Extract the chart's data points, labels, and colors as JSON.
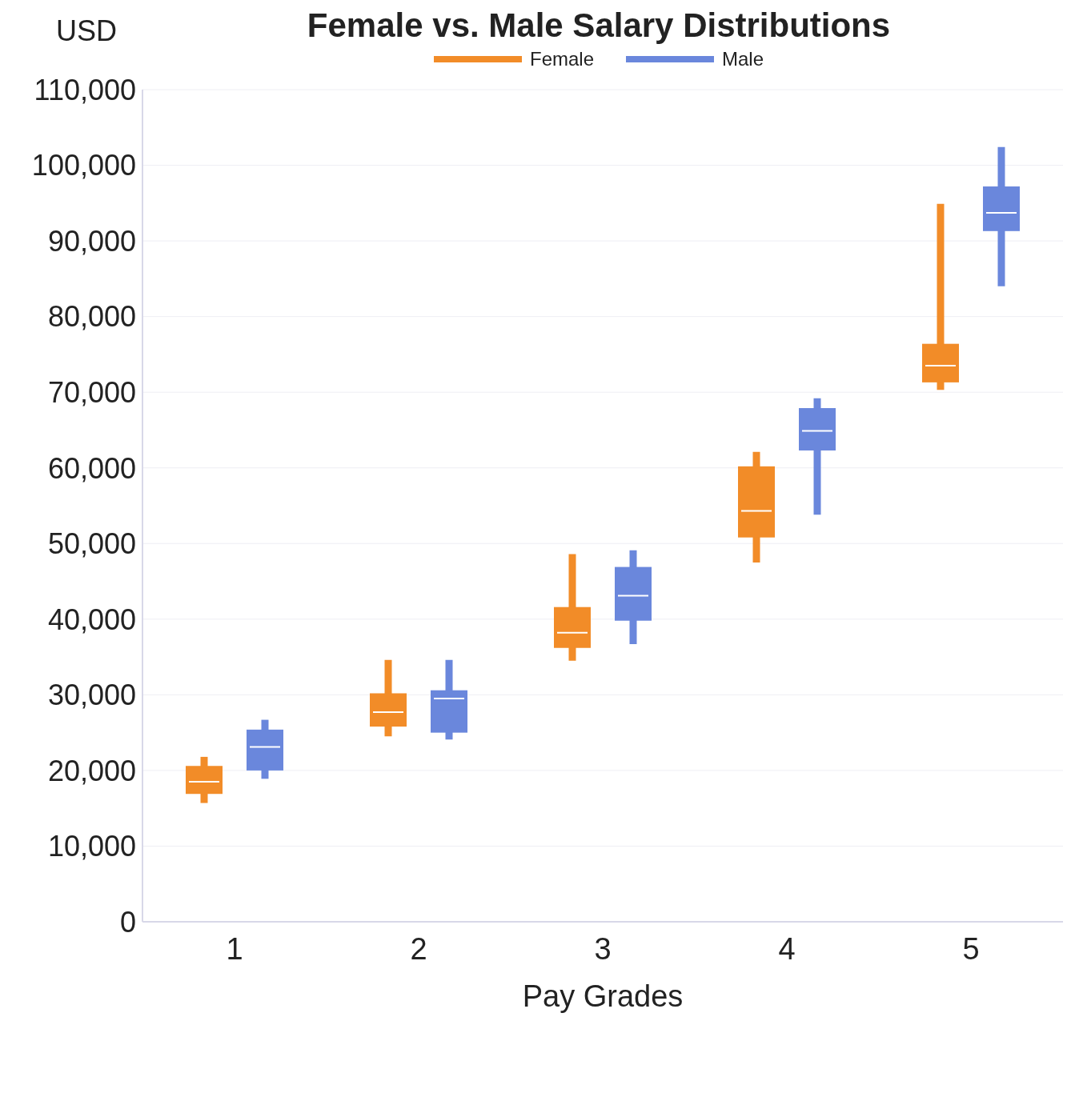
{
  "chart_data": {
    "type": "box",
    "title": "Female vs. Male Salary Distributions",
    "xlabel": "Pay Grades",
    "ylabel": "USD",
    "categories": [
      "1",
      "2",
      "3",
      "4",
      "5"
    ],
    "series": [
      {
        "name": "Female",
        "color": "#f28c28",
        "boxes": [
          {
            "low": 15700,
            "q1": 16900,
            "median": 18500,
            "q3": 20600,
            "high": 21800
          },
          {
            "low": 24500,
            "q1": 25800,
            "median": 27700,
            "q3": 30200,
            "high": 34600
          },
          {
            "low": 34500,
            "q1": 36200,
            "median": 38200,
            "q3": 41600,
            "high": 48600
          },
          {
            "low": 47500,
            "q1": 50800,
            "median": 54300,
            "q3": 60200,
            "high": 62100
          },
          {
            "low": 70300,
            "q1": 71300,
            "median": 73500,
            "q3": 76400,
            "high": 94900
          }
        ]
      },
      {
        "name": "Male",
        "color": "#6a87dc",
        "boxes": [
          {
            "low": 18900,
            "q1": 20000,
            "median": 23100,
            "q3": 25400,
            "high": 26700
          },
          {
            "low": 24100,
            "q1": 25000,
            "median": 29500,
            "q3": 30600,
            "high": 34600
          },
          {
            "low": 36700,
            "q1": 39800,
            "median": 43100,
            "q3": 46900,
            "high": 49100
          },
          {
            "low": 53800,
            "q1": 62300,
            "median": 64900,
            "q3": 67900,
            "high": 69200
          },
          {
            "low": 84000,
            "q1": 91300,
            "median": 93700,
            "q3": 97200,
            "high": 102400
          }
        ]
      }
    ],
    "ylim": [
      0,
      110000
    ],
    "yticks": [
      {
        "value": 0,
        "label": "0"
      },
      {
        "value": 10000,
        "label": "10,000"
      },
      {
        "value": 20000,
        "label": "20,000"
      },
      {
        "value": 30000,
        "label": "30,000"
      },
      {
        "value": 40000,
        "label": "40,000"
      },
      {
        "value": 50000,
        "label": "50,000"
      },
      {
        "value": 60000,
        "label": "60,000"
      },
      {
        "value": 70000,
        "label": "70,000"
      },
      {
        "value": 80000,
        "label": "80,000"
      },
      {
        "value": 90000,
        "label": "90,000"
      },
      {
        "value": 100000,
        "label": "100,000"
      },
      {
        "value": 110000,
        "label": "110,000"
      }
    ],
    "grid": "y",
    "legend": "top"
  }
}
